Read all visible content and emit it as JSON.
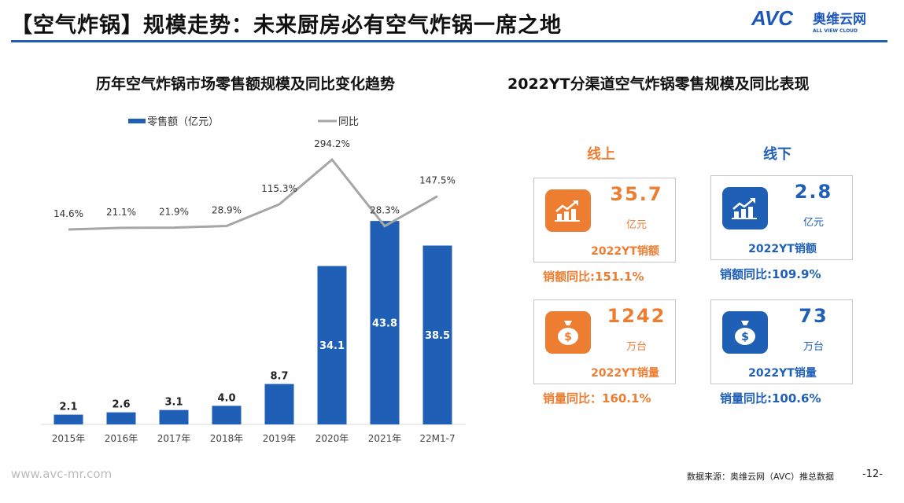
{
  "header": {
    "title": "【空气炸锅】规模走势：未来厨房必有空气炸锅一席之地",
    "logo": {
      "main": "AVC",
      "cn": "奥维云网",
      "en": "ALL VIEW CLOUD"
    }
  },
  "left": {
    "subtitle": "历年空气炸锅市场零售额规模及同比变化趋势"
  },
  "right": {
    "subtitle": "2022YT分渠道空气炸锅零售规模及同比表现",
    "online": {
      "label": "线上",
      "color": "#ed7d31",
      "sales": {
        "value": "35.7",
        "unit": "亿元",
        "caption": "2022YT销额",
        "icon": "chart-growth-icon",
        "yoy": "销额同比:151.1%"
      },
      "volume": {
        "value": "1242",
        "unit": "万台",
        "caption": "2022YT销量",
        "icon": "money-bag-icon",
        "yoy": "销量同比：160.1%"
      }
    },
    "offline": {
      "label": "线下",
      "color": "#1f5fb5",
      "sales": {
        "value": "2.8",
        "unit": "亿元",
        "caption": "2022YT销额",
        "icon": "chart-growth-icon",
        "yoy": "销额同比:109.9%"
      },
      "volume": {
        "value": "73",
        "unit": "万台",
        "caption": "2022YT销量",
        "icon": "money-bag-icon",
        "yoy": "销量同比:100.6%"
      }
    }
  },
  "chart_data": {
    "type": "bar+line",
    "categories": [
      "2015年",
      "2016年",
      "2017年",
      "2018年",
      "2019年",
      "2020年",
      "2021年",
      "22M1-7"
    ],
    "series": [
      {
        "name": "零售额（亿元）",
        "type": "bar",
        "color": "#1f5fb5",
        "values": [
          2.1,
          2.6,
          3.1,
          4.0,
          8.7,
          34.1,
          43.8,
          38.5
        ],
        "labels": [
          "2.1",
          "2.6",
          "3.1",
          "4.0",
          "8.7",
          "34.1",
          "43.8",
          "38.5"
        ]
      },
      {
        "name": "同比",
        "type": "line",
        "color": "#a6a6a6",
        "values": [
          14.6,
          21.1,
          21.9,
          28.9,
          115.3,
          294.2,
          28.3,
          147.5
        ],
        "labels": [
          "14.6%",
          "21.1%",
          "21.9%",
          "28.9%",
          "115.3%",
          "294.2%",
          "28.3%",
          "147.5%"
        ]
      }
    ],
    "legend": "top",
    "grid": false
  },
  "footer": {
    "url": "www.avc-mr.com",
    "source": "数据来源：奥维云网（AVC）推总数据",
    "page": "-12-"
  }
}
